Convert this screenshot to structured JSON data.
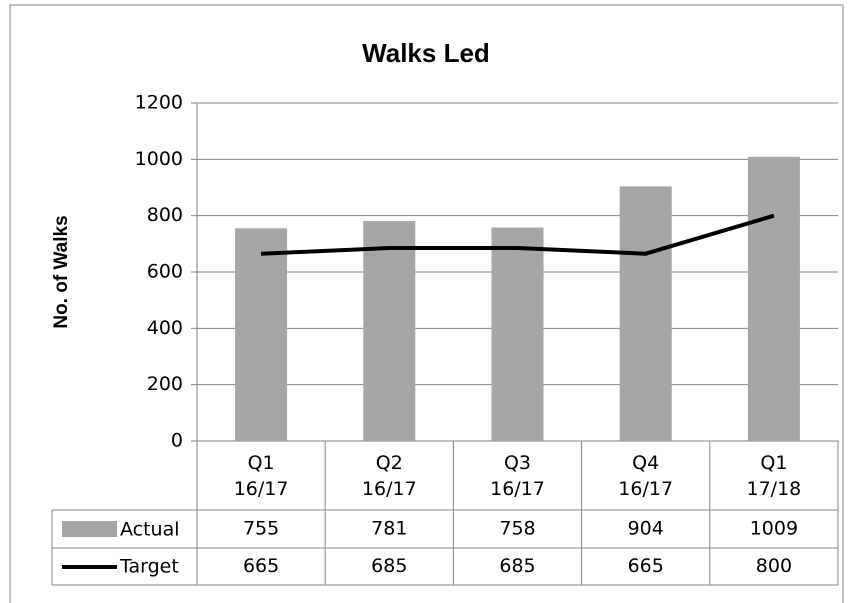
{
  "chart_data": {
    "type": "bar",
    "title": "Walks Led",
    "y_label": "No. of Walks",
    "categories": [
      "Q1 16/17",
      "Q2 16/17",
      "Q3 16/17",
      "Q4 16/17",
      "Q1 17/18"
    ],
    "series": [
      {
        "name": "Actual",
        "type": "bar",
        "color": "#a6a6a6",
        "values": [
          755,
          781,
          758,
          904,
          1009
        ]
      },
      {
        "name": "Target",
        "type": "line",
        "color": "#000000",
        "values": [
          665,
          685,
          685,
          665,
          800
        ]
      }
    ],
    "ylim": [
      0,
      1200
    ],
    "yticks": [
      0,
      200,
      400,
      600,
      800,
      1000,
      1200
    ],
    "grid": true,
    "data_table": true
  }
}
